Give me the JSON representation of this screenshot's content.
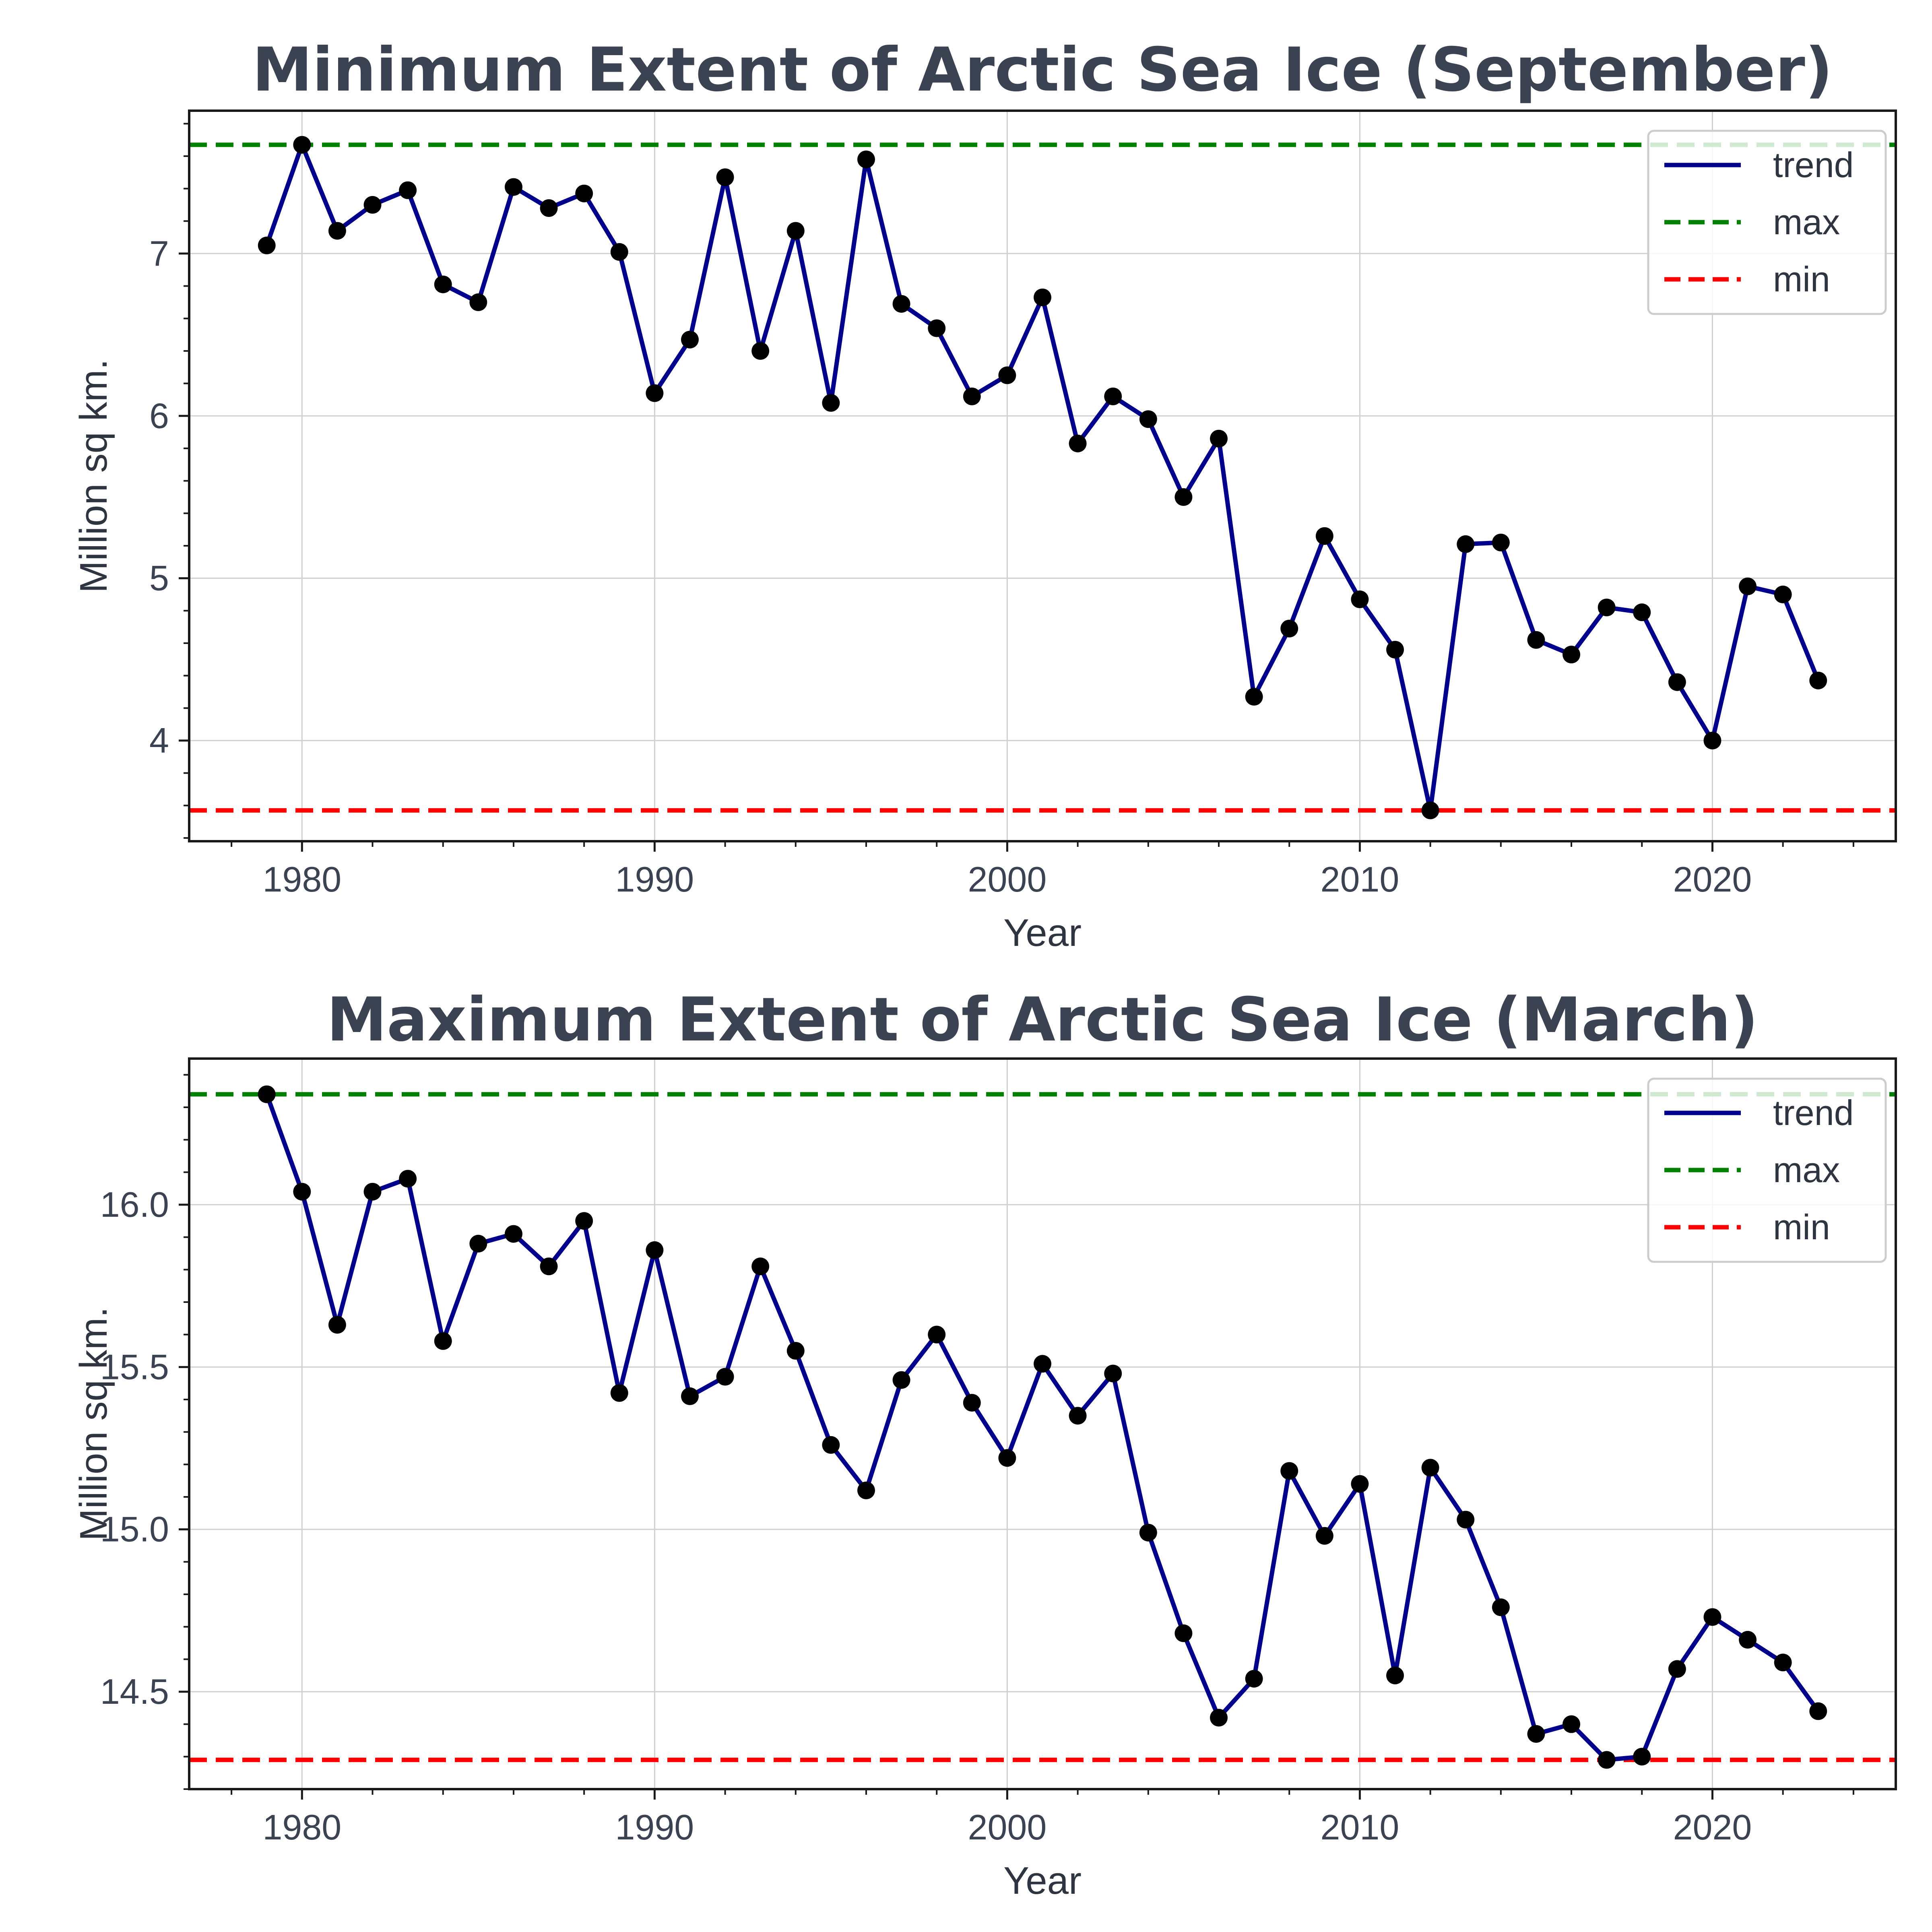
{
  "chart_data": [
    {
      "type": "line",
      "title": "Minimum Extent of Arctic Sea Ice (September)",
      "xlabel": "Year",
      "ylabel": "Million sq km.",
      "xlim": [
        1976.8,
        2025.2
      ],
      "ylim": [
        3.38,
        7.88
      ],
      "xticks": [
        1980,
        1990,
        2000,
        2010,
        2020
      ],
      "yticks": [
        4,
        5,
        6,
        7
      ],
      "ytick_labels": [
        "4",
        "5",
        "6",
        "7"
      ],
      "grid": true,
      "legend_position": "top-right",
      "x": [
        1979,
        1980,
        1981,
        1982,
        1983,
        1984,
        1985,
        1986,
        1987,
        1988,
        1989,
        1990,
        1991,
        1992,
        1993,
        1994,
        1995,
        1996,
        1997,
        1998,
        1999,
        2000,
        2001,
        2002,
        2003,
        2004,
        2005,
        2006,
        2007,
        2008,
        2009,
        2010,
        2011,
        2012,
        2013,
        2014,
        2015,
        2016,
        2017,
        2018,
        2019,
        2020,
        2021,
        2022,
        2023
      ],
      "series": [
        {
          "name": "trend",
          "color": "#00008b",
          "values": [
            7.05,
            7.67,
            7.14,
            7.3,
            7.39,
            6.81,
            6.7,
            7.41,
            7.28,
            7.37,
            7.01,
            6.14,
            6.47,
            7.47,
            6.4,
            7.14,
            6.08,
            7.58,
            6.69,
            6.54,
            6.12,
            6.25,
            6.73,
            5.83,
            6.12,
            5.98,
            5.5,
            5.86,
            4.27,
            4.69,
            5.26,
            4.87,
            4.56,
            3.57,
            5.21,
            5.22,
            4.62,
            4.53,
            4.82,
            4.79,
            4.36,
            4.0,
            4.95,
            4.9,
            4.37
          ]
        },
        {
          "name": "max",
          "color": "#008000",
          "value": 7.67,
          "style": "dashed"
        },
        {
          "name": "min",
          "color": "#ff0000",
          "value": 3.57,
          "style": "dashed"
        }
      ]
    },
    {
      "type": "line",
      "title": "Maximum Extent of Arctic Sea Ice (March)",
      "xlabel": "Year",
      "ylabel": "Million sq km.",
      "xlim": [
        1976.8,
        2025.2
      ],
      "ylim": [
        14.2,
        16.45
      ],
      "xticks": [
        1980,
        1990,
        2000,
        2010,
        2020
      ],
      "yticks": [
        14.5,
        15.0,
        15.5,
        16.0
      ],
      "ytick_labels": [
        "14.5",
        "15.0",
        "15.5",
        "16.0"
      ],
      "grid": true,
      "legend_position": "top-right",
      "x": [
        1979,
        1980,
        1981,
        1982,
        1983,
        1984,
        1985,
        1986,
        1987,
        1988,
        1989,
        1990,
        1991,
        1992,
        1993,
        1994,
        1995,
        1996,
        1997,
        1998,
        1999,
        2000,
        2001,
        2002,
        2003,
        2004,
        2005,
        2006,
        2007,
        2008,
        2009,
        2010,
        2011,
        2012,
        2013,
        2014,
        2015,
        2016,
        2017,
        2018,
        2019,
        2020,
        2021,
        2022,
        2023
      ],
      "series": [
        {
          "name": "trend",
          "color": "#00008b",
          "values": [
            16.34,
            16.04,
            15.63,
            16.04,
            16.08,
            15.58,
            15.88,
            15.91,
            15.81,
            15.95,
            15.42,
            15.86,
            15.41,
            15.47,
            15.81,
            15.55,
            15.26,
            15.12,
            15.46,
            15.6,
            15.39,
            15.22,
            15.51,
            15.35,
            15.48,
            14.99,
            14.68,
            14.42,
            14.54,
            15.18,
            14.98,
            15.14,
            14.55,
            15.19,
            15.03,
            14.76,
            14.37,
            14.4,
            14.29,
            14.3,
            14.57,
            14.73,
            14.66,
            14.59,
            14.44
          ]
        },
        {
          "name": "max",
          "color": "#008000",
          "value": 16.34,
          "style": "dashed"
        },
        {
          "name": "min",
          "color": "#ff0000",
          "value": 14.29,
          "style": "dashed"
        }
      ]
    }
  ]
}
